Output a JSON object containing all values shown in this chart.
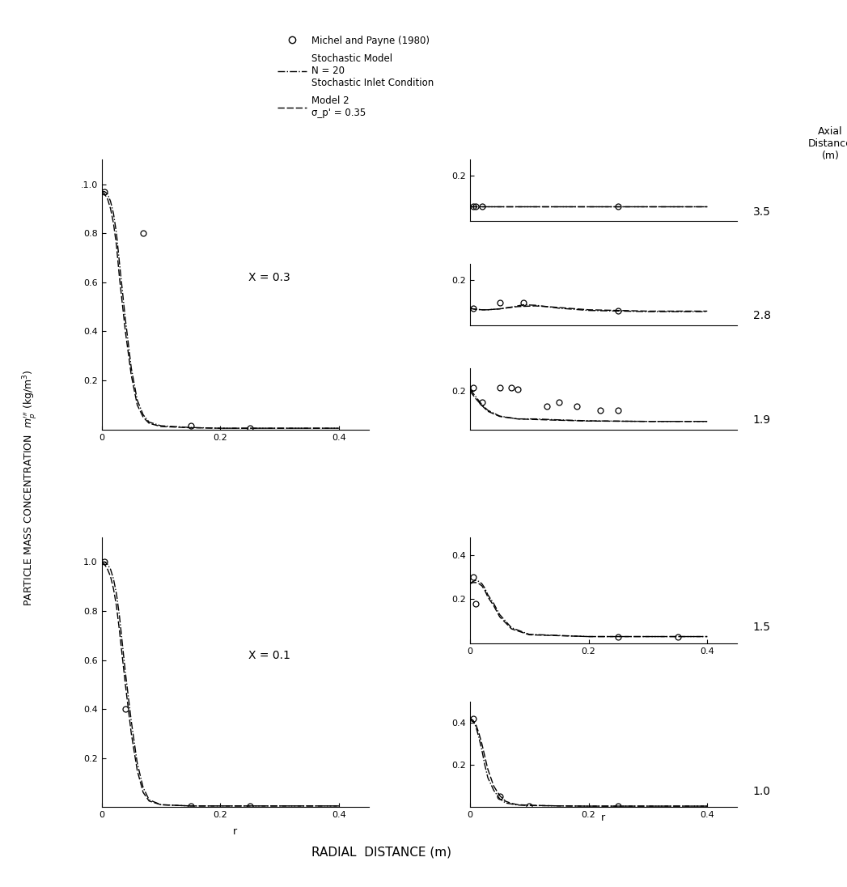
{
  "ylabel": "PARTICLE MASS CONCENTRATION  m_p (kg/m3)",
  "xlabel": "RADIAL  DISTANCE (m)",
  "background_color": "#ffffff",
  "legend": {
    "michel_label": "Michel and Payne (1980)",
    "stochastic_label": "Stochastic Model\nN = 20\nStochastic Inlet Condition",
    "model2_label": "Model 2\nσ_p' = 0.35"
  },
  "panels": {
    "x03": {
      "annotation": "X = 0.3",
      "xlim": [
        0,
        0.45
      ],
      "ylim": [
        0,
        1.1
      ],
      "yticks": [
        0.2,
        0.4,
        0.6,
        0.8,
        1.0
      ],
      "ytick_labels": [
        "0.2",
        "0.4",
        "0.6",
        "0.8",
        "1.0"
      ],
      "xticks": [
        0,
        0.2,
        0.4
      ],
      "xtick_labels": [
        "0",
        "0.2",
        "0.4"
      ],
      "stochastic_r": [
        0,
        0.005,
        0.01,
        0.015,
        0.02,
        0.025,
        0.03,
        0.04,
        0.05,
        0.06,
        0.07,
        0.08,
        0.1,
        0.15,
        0.2,
        0.3,
        0.4
      ],
      "stochastic_m": [
        0.97,
        0.97,
        0.96,
        0.93,
        0.88,
        0.8,
        0.68,
        0.45,
        0.25,
        0.12,
        0.06,
        0.03,
        0.015,
        0.008,
        0.005,
        0.005,
        0.005
      ],
      "model2_r": [
        0,
        0.005,
        0.01,
        0.015,
        0.02,
        0.025,
        0.03,
        0.04,
        0.05,
        0.06,
        0.07,
        0.08,
        0.1,
        0.15,
        0.2,
        0.3,
        0.4
      ],
      "model2_m": [
        0.97,
        0.96,
        0.94,
        0.9,
        0.84,
        0.75,
        0.62,
        0.4,
        0.22,
        0.1,
        0.05,
        0.025,
        0.012,
        0.007,
        0.005,
        0.005,
        0.005
      ],
      "data_r": [
        0.005,
        0.07,
        0.15,
        0.25
      ],
      "data_m": [
        0.97,
        0.8,
        0.015,
        0.005
      ]
    },
    "x01": {
      "annotation": "X = 0.1",
      "xlim": [
        0,
        0.45
      ],
      "ylim": [
        0,
        1.1
      ],
      "yticks": [
        0.2,
        0.4,
        0.6,
        0.8,
        1.0
      ],
      "ytick_labels": [
        "0.2",
        "0.4",
        "0.6",
        "0.8",
        "1.0"
      ],
      "xticks": [
        0,
        0.2,
        0.4
      ],
      "xtick_labels": [
        "0",
        "0.2",
        "0.4"
      ],
      "stochastic_r": [
        0,
        0.005,
        0.01,
        0.015,
        0.02,
        0.025,
        0.03,
        0.04,
        0.05,
        0.06,
        0.07,
        0.08,
        0.1,
        0.15,
        0.2,
        0.3,
        0.4
      ],
      "stochastic_m": [
        1.0,
        1.0,
        0.99,
        0.97,
        0.93,
        0.87,
        0.78,
        0.55,
        0.35,
        0.18,
        0.08,
        0.03,
        0.01,
        0.005,
        0.005,
        0.005,
        0.005
      ],
      "model2_r": [
        0,
        0.005,
        0.01,
        0.015,
        0.02,
        0.025,
        0.03,
        0.04,
        0.05,
        0.06,
        0.07,
        0.08,
        0.1,
        0.15,
        0.2,
        0.3,
        0.4
      ],
      "model2_m": [
        1.0,
        0.99,
        0.97,
        0.94,
        0.89,
        0.82,
        0.72,
        0.5,
        0.3,
        0.15,
        0.06,
        0.025,
        0.01,
        0.005,
        0.005,
        0.005,
        0.005
      ],
      "data_r": [
        0.005,
        0.04,
        0.15,
        0.25
      ],
      "data_m": [
        1.0,
        0.4,
        0.005,
        0.005
      ]
    },
    "x35": {
      "axial_dist": "3.5",
      "xlim": [
        0,
        0.45
      ],
      "ylim": [
        0,
        0.27
      ],
      "yticks": [
        0.2
      ],
      "ytick_labels": [
        "0.2"
      ],
      "xticks": [],
      "xtick_labels": [],
      "stochastic_r": [
        0,
        0.005,
        0.01,
        0.02,
        0.03,
        0.05,
        0.07,
        0.1,
        0.15,
        0.2,
        0.25,
        0.3,
        0.4
      ],
      "stochastic_m": [
        0.065,
        0.065,
        0.065,
        0.065,
        0.065,
        0.065,
        0.065,
        0.065,
        0.065,
        0.065,
        0.065,
        0.065,
        0.065
      ],
      "model2_r": [
        0,
        0.005,
        0.01,
        0.02,
        0.03,
        0.05,
        0.07,
        0.1,
        0.15,
        0.2,
        0.25,
        0.3,
        0.4
      ],
      "model2_m": [
        0.065,
        0.065,
        0.065,
        0.065,
        0.065,
        0.065,
        0.065,
        0.065,
        0.065,
        0.065,
        0.065,
        0.065,
        0.065
      ],
      "data_r": [
        0.005,
        0.01,
        0.02,
        0.25
      ],
      "data_m": [
        0.065,
        0.065,
        0.065,
        0.065
      ]
    },
    "x28": {
      "axial_dist": "2.8",
      "xlim": [
        0,
        0.45
      ],
      "ylim": [
        0,
        0.27
      ],
      "yticks": [
        0.2
      ],
      "ytick_labels": [
        "0.2"
      ],
      "xticks": [],
      "xtick_labels": [],
      "stochastic_r": [
        0,
        0.005,
        0.01,
        0.02,
        0.03,
        0.05,
        0.07,
        0.09,
        0.11,
        0.13,
        0.15,
        0.2,
        0.3,
        0.4
      ],
      "stochastic_m": [
        0.075,
        0.072,
        0.07,
        0.068,
        0.068,
        0.072,
        0.08,
        0.09,
        0.088,
        0.082,
        0.075,
        0.065,
        0.06,
        0.06
      ],
      "model2_r": [
        0,
        0.005,
        0.01,
        0.02,
        0.03,
        0.05,
        0.08,
        0.11,
        0.14,
        0.2,
        0.3,
        0.4
      ],
      "model2_m": [
        0.075,
        0.072,
        0.07,
        0.068,
        0.068,
        0.072,
        0.082,
        0.085,
        0.08,
        0.068,
        0.062,
        0.062
      ],
      "data_r": [
        0.005,
        0.05,
        0.09,
        0.25
      ],
      "data_m": [
        0.075,
        0.1,
        0.1,
        0.065
      ]
    },
    "x19": {
      "axial_dist": "1.9",
      "xlim": [
        0,
        0.45
      ],
      "ylim": [
        0,
        0.32
      ],
      "yticks": [
        0.2
      ],
      "ytick_labels": [
        "0.2"
      ],
      "xticks": [],
      "xtick_labels": [],
      "stochastic_r": [
        0,
        0.005,
        0.01,
        0.02,
        0.03,
        0.05,
        0.08,
        0.11,
        0.15,
        0.2,
        0.3,
        0.4
      ],
      "stochastic_m": [
        0.21,
        0.19,
        0.17,
        0.13,
        0.1,
        0.07,
        0.055,
        0.055,
        0.05,
        0.045,
        0.042,
        0.042
      ],
      "model2_r": [
        0,
        0.005,
        0.01,
        0.02,
        0.03,
        0.05,
        0.08,
        0.11,
        0.15,
        0.2,
        0.3,
        0.4
      ],
      "model2_m": [
        0.2,
        0.18,
        0.16,
        0.125,
        0.095,
        0.068,
        0.055,
        0.052,
        0.048,
        0.044,
        0.042,
        0.042
      ],
      "data_r": [
        0.005,
        0.02,
        0.05,
        0.07,
        0.08,
        0.13,
        0.15,
        0.18,
        0.22,
        0.25
      ],
      "data_m": [
        0.22,
        0.14,
        0.22,
        0.22,
        0.21,
        0.12,
        0.14,
        0.12,
        0.1,
        0.1
      ]
    },
    "x15": {
      "axial_dist": "1.5",
      "xlim": [
        0,
        0.45
      ],
      "ylim": [
        0,
        0.48
      ],
      "yticks": [
        0.2,
        0.4
      ],
      "ytick_labels": [
        "0.2",
        "0.4"
      ],
      "xticks": [
        0,
        0.2,
        0.4
      ],
      "xtick_labels": [
        "0",
        "0.2",
        "0.4"
      ],
      "stochastic_r": [
        0,
        0.005,
        0.01,
        0.015,
        0.02,
        0.025,
        0.03,
        0.04,
        0.05,
        0.07,
        0.1,
        0.2,
        0.3,
        0.4
      ],
      "stochastic_m": [
        0.27,
        0.28,
        0.285,
        0.28,
        0.27,
        0.25,
        0.22,
        0.18,
        0.13,
        0.07,
        0.04,
        0.03,
        0.03,
        0.03
      ],
      "model2_r": [
        0,
        0.005,
        0.01,
        0.015,
        0.02,
        0.025,
        0.03,
        0.04,
        0.05,
        0.07,
        0.1,
        0.2,
        0.3,
        0.4
      ],
      "model2_m": [
        0.27,
        0.275,
        0.275,
        0.27,
        0.26,
        0.24,
        0.21,
        0.17,
        0.12,
        0.065,
        0.038,
        0.03,
        0.03,
        0.03
      ],
      "data_r": [
        0.005,
        0.01,
        0.25,
        0.35
      ],
      "data_m": [
        0.3,
        0.18,
        0.03,
        0.03
      ]
    },
    "x10": {
      "axial_dist": "1.0",
      "xlim": [
        0,
        0.45
      ],
      "ylim": [
        0,
        0.5
      ],
      "yticks": [
        0.2,
        0.4
      ],
      "ytick_labels": [
        "0.2",
        "0.4"
      ],
      "xticks": [
        0,
        0.2,
        0.4
      ],
      "xtick_labels": [
        "0",
        "0.2",
        "0.4"
      ],
      "stochastic_r": [
        0,
        0.005,
        0.01,
        0.015,
        0.02,
        0.025,
        0.03,
        0.04,
        0.05,
        0.06,
        0.07,
        0.08,
        0.1,
        0.15,
        0.2,
        0.3,
        0.4
      ],
      "stochastic_m": [
        0.42,
        0.41,
        0.38,
        0.33,
        0.27,
        0.2,
        0.14,
        0.08,
        0.04,
        0.02,
        0.015,
        0.01,
        0.008,
        0.006,
        0.005,
        0.005,
        0.005
      ],
      "model2_r": [
        0,
        0.005,
        0.01,
        0.015,
        0.02,
        0.025,
        0.03,
        0.04,
        0.05,
        0.06,
        0.07,
        0.08,
        0.1,
        0.15,
        0.2,
        0.3,
        0.4
      ],
      "model2_m": [
        0.42,
        0.41,
        0.39,
        0.35,
        0.3,
        0.24,
        0.18,
        0.1,
        0.055,
        0.028,
        0.018,
        0.012,
        0.009,
        0.006,
        0.005,
        0.005,
        0.005
      ],
      "data_r": [
        0.005,
        0.05,
        0.1,
        0.25
      ],
      "data_m": [
        0.42,
        0.05,
        0.006,
        0.005
      ]
    }
  }
}
